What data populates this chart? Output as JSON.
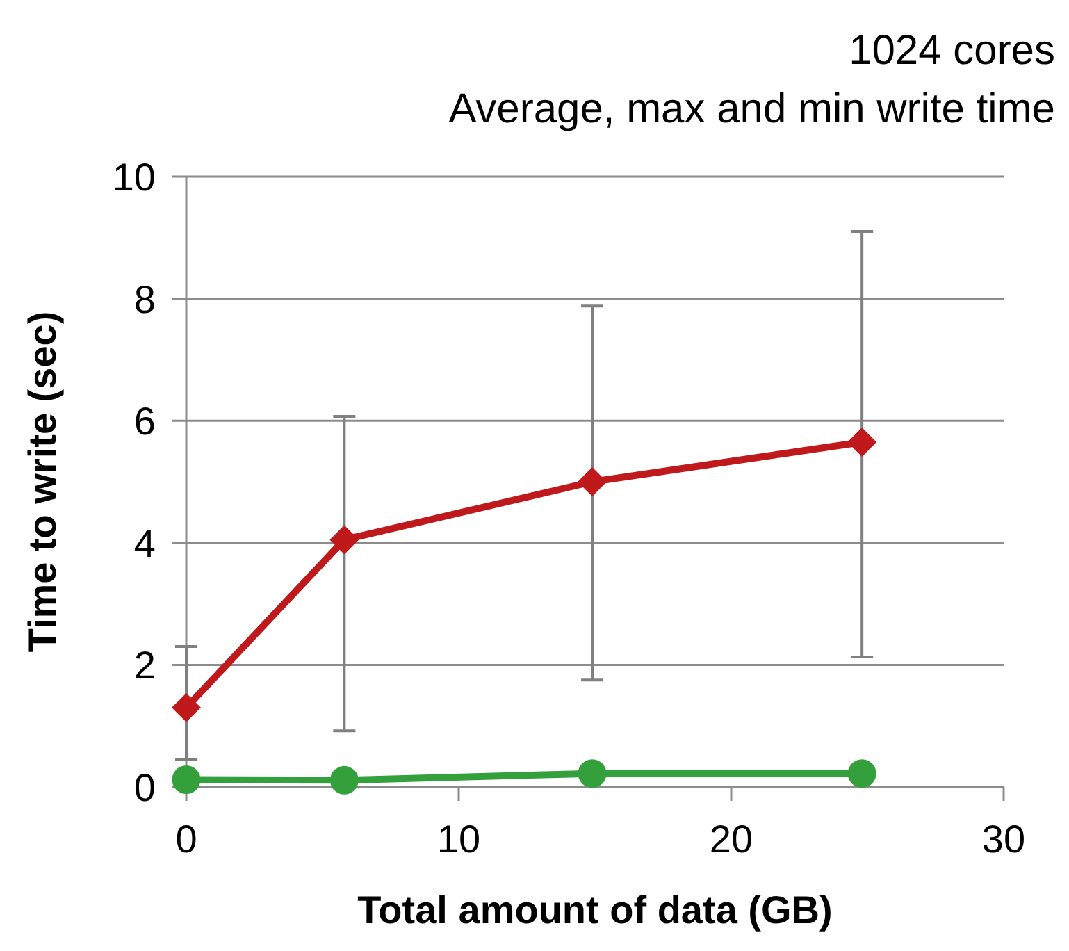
{
  "chart_data": {
    "type": "line",
    "title": "1024 cores",
    "subtitle": "Average, max and min write time",
    "xlabel": "Total amount of data (GB)",
    "ylabel": "Time to write (sec)",
    "xlim": [
      0,
      30
    ],
    "xticks": [
      0,
      10,
      20,
      30
    ],
    "ylim": [
      0,
      10
    ],
    "yticks": [
      0,
      2,
      4,
      6,
      8,
      10
    ],
    "grid": "y",
    "series": [
      {
        "color": "#c0191c",
        "marker": "diamond",
        "x": [
          0,
          5.8,
          14.9,
          24.8
        ],
        "values": [
          1.3,
          4.05,
          5.0,
          5.65
        ],
        "errors": [
          [
            0.45,
            2.3
          ],
          [
            0.92,
            6.07
          ],
          [
            1.75,
            7.88
          ],
          [
            2.13,
            9.1
          ]
        ]
      },
      {
        "color": "#33a03c",
        "marker": "circle",
        "x": [
          0,
          5.8,
          14.9,
          24.8
        ],
        "values": [
          0.12,
          0.11,
          0.22,
          0.22
        ]
      }
    ]
  }
}
